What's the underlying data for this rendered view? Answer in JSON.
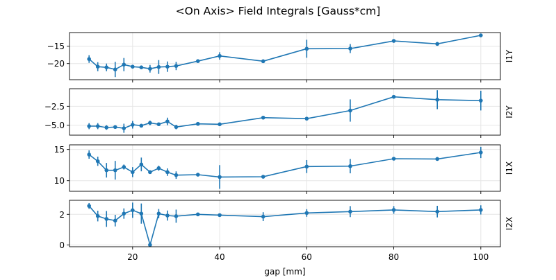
{
  "chart_data": {
    "type": "line",
    "title": "<On Axis> Field Integrals [Gauss*cm]",
    "xlabel": "gap [mm]",
    "xlim": [
      5.5,
      104.5
    ],
    "xticks": [
      20,
      40,
      60,
      80,
      100
    ],
    "x": [
      10,
      12,
      14,
      16,
      18,
      20,
      22,
      24,
      26,
      28,
      30,
      35,
      40,
      50,
      60,
      70,
      80,
      90,
      100
    ],
    "color": "#1f77b4",
    "grid": true,
    "panels": [
      {
        "ylabel": "I1Y",
        "ylim": [
          -24.66,
          -11.06
        ],
        "yticks": [
          -15,
          -20
        ],
        "values": [
          -18.7,
          -20.9,
          -21.1,
          -21.7,
          -20.3,
          -20.9,
          -21.1,
          -21.5,
          -21.0,
          -20.9,
          -20.7,
          -19.3,
          -17.8,
          -19.33,
          -15.73,
          -15.67,
          -13.47,
          -14.33,
          -11.87
        ],
        "errors": [
          1.1,
          1.3,
          1.1,
          2.2,
          1.9,
          0.5,
          0.3,
          1.1,
          2.0,
          1.5,
          1.2,
          0.3,
          1.07,
          0.3,
          2.6,
          1.3,
          0.3,
          0.3,
          0.3
        ]
      },
      {
        "ylabel": "I2Y",
        "ylim": [
          -6.31,
          -0.18
        ],
        "yticks": [
          -2.5,
          -5.0
        ],
        "values": [
          -5.12,
          -5.12,
          -5.3,
          -5.24,
          -5.4,
          -4.94,
          -5.06,
          -4.69,
          -4.87,
          -4.5,
          -5.24,
          -4.82,
          -4.875,
          -4.0,
          -4.13,
          -3.06,
          -1.25,
          -1.63,
          -1.75
        ],
        "errors": [
          0.4,
          0.4,
          0.3,
          0.2,
          0.6,
          0.5,
          0.1,
          0.3,
          0.2,
          0.5,
          0.3,
          0.1,
          0.1,
          0.1,
          0.1,
          1.47,
          0.1,
          1.25,
          1.3
        ]
      },
      {
        "ylabel": "I1X",
        "ylim": [
          8.3,
          15.74
        ],
        "yticks": [
          15,
          10
        ],
        "values": [
          14.19,
          13.11,
          11.67,
          11.67,
          12.19,
          11.37,
          12.6,
          11.37,
          12.0,
          11.37,
          10.89,
          10.96,
          10.59,
          10.63,
          12.26,
          12.33,
          13.52,
          13.48,
          14.52
        ],
        "errors": [
          0.67,
          0.74,
          1.17,
          1.5,
          0.4,
          0.8,
          1.1,
          0.2,
          0.4,
          0.6,
          0.6,
          0.2,
          1.9,
          0.2,
          1.04,
          1.15,
          0.2,
          0.3,
          0.9
        ]
      },
      {
        "ylabel": "I2X",
        "ylim": [
          -0.12,
          2.92
        ],
        "yticks": [
          2,
          0
        ],
        "values": [
          2.55,
          1.89,
          1.7,
          1.59,
          2.05,
          2.27,
          2.05,
          0.0,
          2.05,
          1.92,
          1.88,
          2.0,
          1.95,
          1.85,
          2.09,
          2.18,
          2.29,
          2.18,
          2.29
        ],
        "errors": [
          0.19,
          0.35,
          0.52,
          0.38,
          0.34,
          0.5,
          0.66,
          0.02,
          0.3,
          0.33,
          0.43,
          0.1,
          0.05,
          0.29,
          0.25,
          0.36,
          0.25,
          0.38,
          0.3
        ]
      }
    ]
  }
}
